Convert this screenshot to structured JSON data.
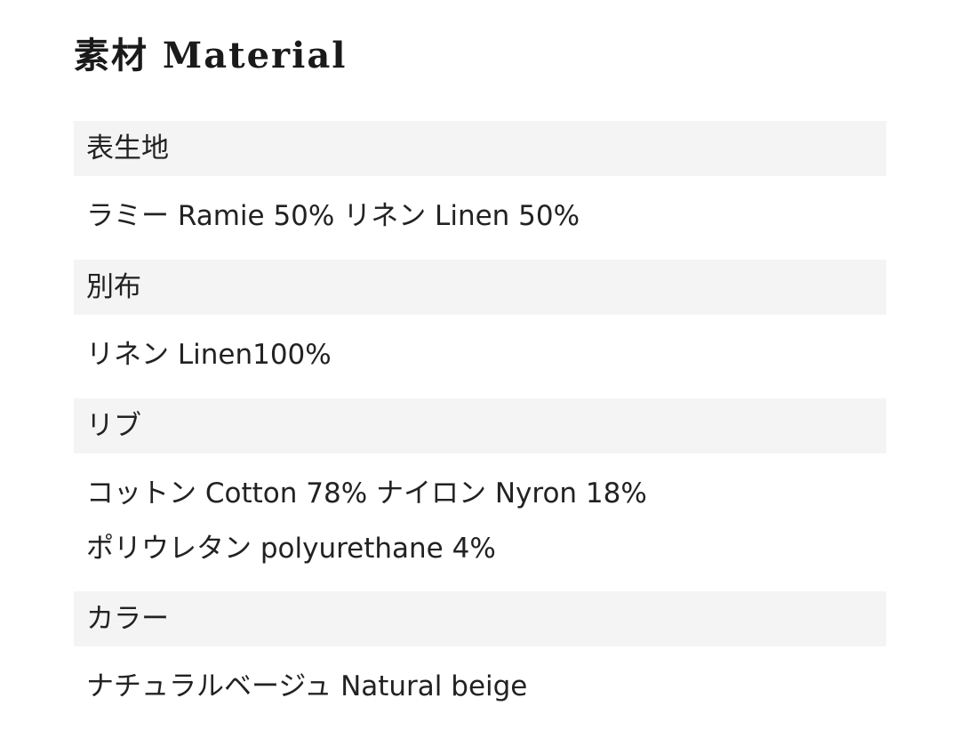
{
  "title": "素材 Material",
  "rows": [
    {
      "label": "表生地",
      "lines": [
        "ラミー Ramie 50% リネン Linen 50%"
      ]
    },
    {
      "label": "別布",
      "lines": [
        "リネン Linen100%"
      ]
    },
    {
      "label": "リブ",
      "lines": [
        "コットン Cotton 78% ナイロン Nyron 18%",
        "ポリウレタン polyurethane 4%"
      ]
    },
    {
      "label": "カラー",
      "lines": [
        "ナチュラルベージュ Natural beige"
      ]
    }
  ]
}
